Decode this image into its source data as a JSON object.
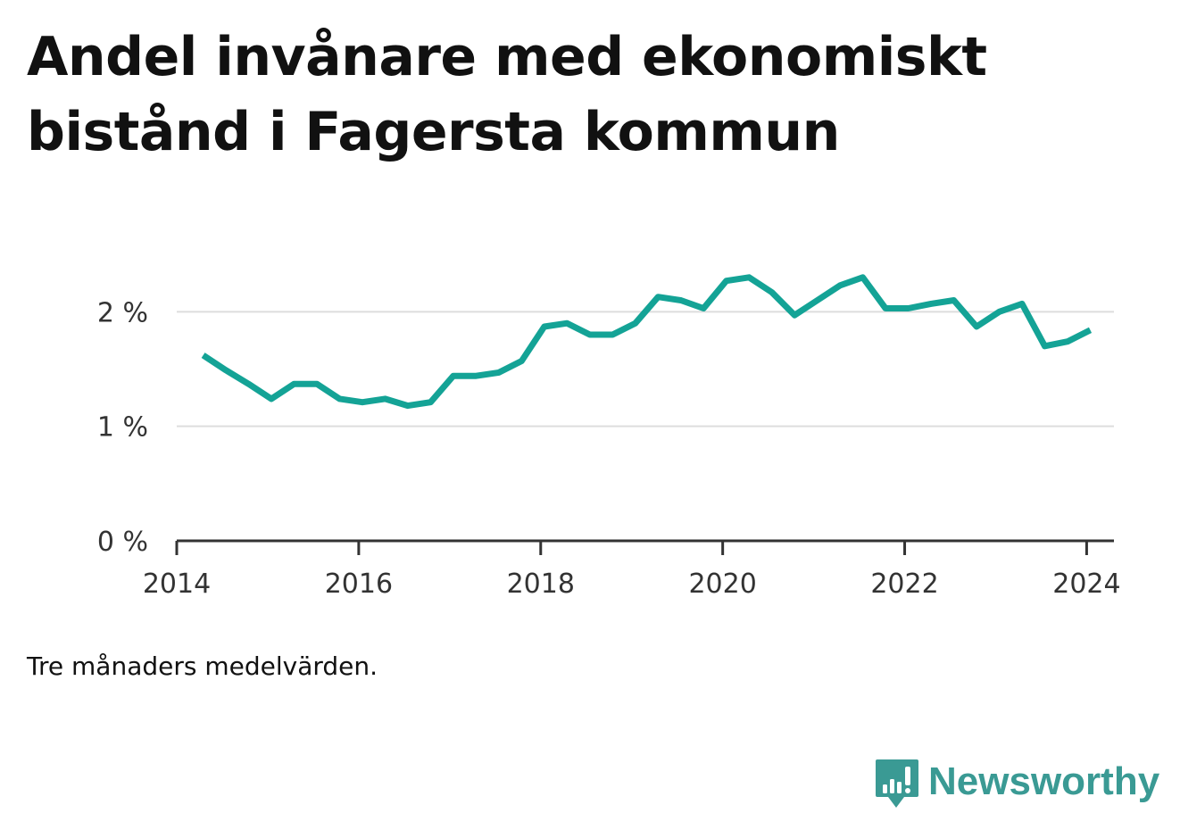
{
  "title_lines": [
    "Andel invånare med ekonomiskt",
    "bistånd i Fagersta kommun"
  ],
  "note": "Tre månaders medelvärden.",
  "brand": {
    "name": "Newsworthy",
    "icon": "newsworthy-logo-icon",
    "color": "#3a9a94"
  },
  "chart_data": {
    "type": "line",
    "title": "Andel invånare med ekonomiskt bistånd i Fagersta kommun",
    "xlabel": "",
    "ylabel": "",
    "xlim": [
      2014.0,
      2024.3
    ],
    "ylim": [
      0,
      2.4
    ],
    "x_ticks": [
      2014,
      2016,
      2018,
      2020,
      2022,
      2024
    ],
    "x_tick_labels": [
      "2014",
      "2016",
      "2018",
      "2020",
      "2022",
      "2024"
    ],
    "y_ticks": [
      0,
      1,
      2
    ],
    "y_tick_labels": [
      "0 %",
      "1 %",
      "2 %"
    ],
    "grid": "horizontal",
    "legend": "none",
    "series": [
      {
        "color": "#14a396",
        "x": [
          2014.29,
          2014.54,
          2014.79,
          2015.04,
          2015.29,
          2015.54,
          2015.79,
          2016.04,
          2016.29,
          2016.54,
          2016.79,
          2017.04,
          2017.29,
          2017.54,
          2017.79,
          2018.04,
          2018.29,
          2018.54,
          2018.79,
          2019.04,
          2019.29,
          2019.54,
          2019.79,
          2020.04,
          2020.29,
          2020.54,
          2020.79,
          2021.04,
          2021.29,
          2021.54,
          2021.79,
          2022.04,
          2022.29,
          2022.54,
          2022.79,
          2023.04,
          2023.29,
          2023.54,
          2023.79,
          2024.04
        ],
        "values": [
          1.62,
          1.49,
          1.37,
          1.24,
          1.37,
          1.37,
          1.24,
          1.21,
          1.24,
          1.18,
          1.21,
          1.44,
          1.44,
          1.47,
          1.57,
          1.87,
          1.9,
          1.8,
          1.8,
          1.9,
          2.13,
          2.1,
          2.03,
          2.27,
          2.3,
          2.17,
          1.97,
          2.1,
          2.23,
          2.3,
          2.03,
          2.03,
          2.07,
          2.1,
          1.87,
          2.0,
          2.07,
          1.7,
          1.74,
          1.84
        ]
      }
    ]
  }
}
